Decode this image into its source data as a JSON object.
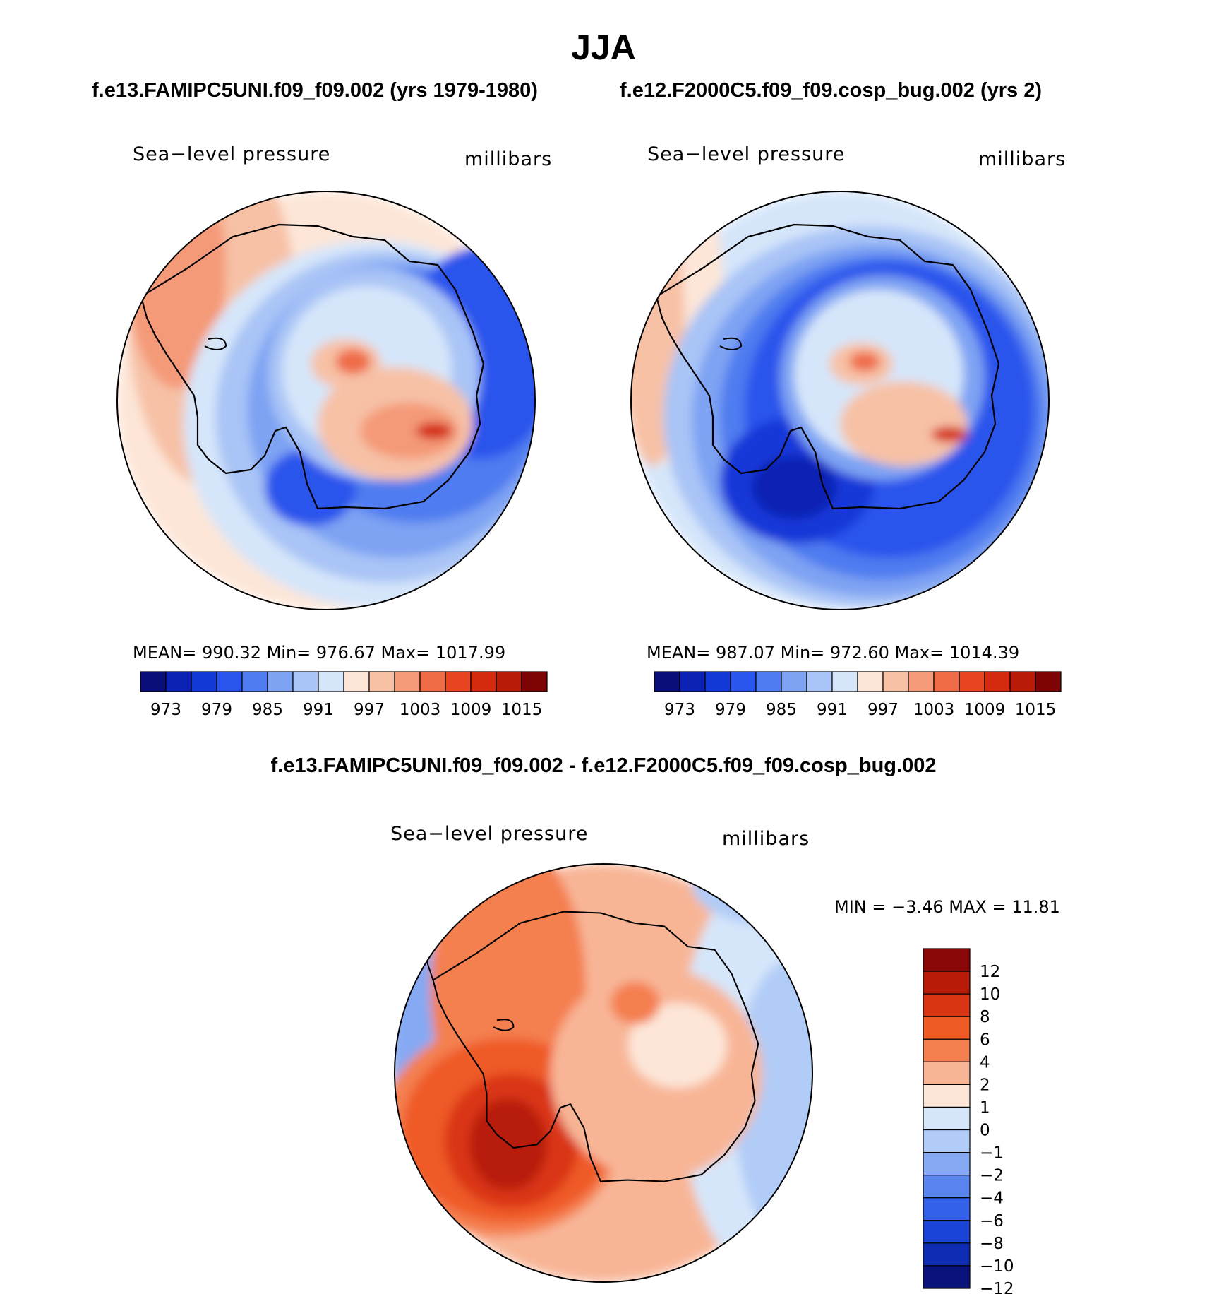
{
  "title": "JJA",
  "panels": [
    {
      "case_title": "f.e13.FAMIPC5UNI.f09_f09.002 (yrs 1979-1980)",
      "variable": "Sea−level pressure",
      "units": "millibars",
      "stats": "MEAN= 990.32   Min= 976.67   Max= 1017.99"
    },
    {
      "case_title": "f.e12.F2000C5.f09_f09.cosp_bug.002 (yrs 2)",
      "variable": "Sea−level pressure",
      "units": "millibars",
      "stats": "MEAN= 987.07   Min= 972.60   Max= 1014.39"
    }
  ],
  "abs_colorbar": {
    "tick_labels": [
      "973",
      "979",
      "985",
      "991",
      "997",
      "1003",
      "1009",
      "1015"
    ],
    "colors": [
      "#0a0e78",
      "#0b22b4",
      "#1238d8",
      "#2a55ec",
      "#4f7cf0",
      "#7ea3f3",
      "#a9c4f6",
      "#d6e6fa",
      "#fde6d8",
      "#f7c1a6",
      "#f49a78",
      "#ef6c46",
      "#e84421",
      "#d42b0e",
      "#b81c08",
      "#7c0404"
    ]
  },
  "diff": {
    "title": "f.e13.FAMIPC5UNI.f09_f09.002 - f.e12.F2000C5.f09_f09.cosp_bug.002",
    "variable": "Sea−level pressure",
    "units": "millibars",
    "stats": "MIN =   −3.46  MAX =    11.81",
    "colorbar": {
      "tick_labels": [
        "12",
        "10",
        "8",
        "6",
        "4",
        "2",
        "1",
        "0",
        "−1",
        "−2",
        "−4",
        "−6",
        "−8",
        "−10",
        "−12"
      ],
      "colors": [
        "#8a0808",
        "#b81c08",
        "#d93512",
        "#ef5a25",
        "#f47f4f",
        "#f8b596",
        "#fde6d8",
        "#d6e6fa",
        "#b1ccf7",
        "#86a9f3",
        "#5a85ee",
        "#3362e8",
        "#1a44d8",
        "#0f2cb4",
        "#0a137c"
      ]
    }
  },
  "chart_data": {
    "type": "map",
    "projection": "south polar stereographic",
    "maps": [
      {
        "name": "f.e13.FAMIPC5UNI.f09_f09.002",
        "mean": 990.32,
        "min": 976.67,
        "max": 1017.99,
        "contour_levels": [
          973,
          975,
          977,
          979,
          981,
          983,
          985,
          987,
          989,
          991,
          993,
          995,
          997,
          999,
          1001,
          1003,
          1005,
          1007,
          1009,
          1011,
          1013,
          1015
        ]
      },
      {
        "name": "f.e12.F2000C5.f09_f09.cosp_bug.002",
        "mean": 987.07,
        "min": 972.6,
        "max": 1014.39,
        "contour_levels": [
          973,
          975,
          977,
          979,
          981,
          983,
          985,
          987,
          989,
          991,
          993,
          995,
          997,
          999,
          1001,
          1003,
          1005,
          1007,
          1009,
          1011,
          1013,
          1015
        ]
      },
      {
        "name": "difference",
        "min": -3.46,
        "max": 11.81,
        "contour_levels": [
          -12,
          -10,
          -8,
          -6,
          -4,
          -2,
          -1,
          0,
          1,
          2,
          4,
          6,
          8,
          10,
          12
        ]
      }
    ]
  }
}
